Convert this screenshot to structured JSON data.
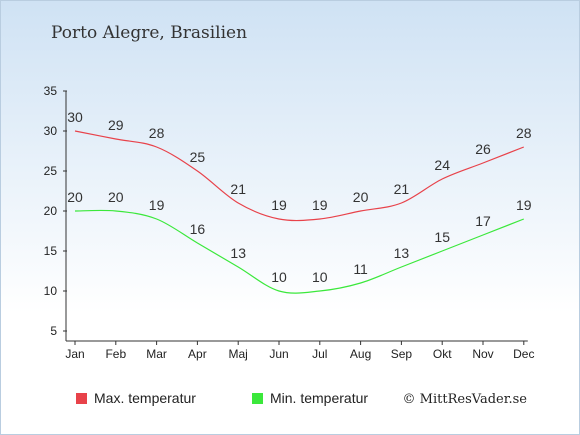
{
  "title": "Porto Alegre, Brasilien",
  "credit": "© MittResVader.se",
  "colors": {
    "max": "#e8424a",
    "min": "#3be83b",
    "axis": "#333333"
  },
  "chart_data": {
    "type": "line",
    "categories": [
      "Jan",
      "Feb",
      "Mar",
      "Apr",
      "Maj",
      "Jun",
      "Jul",
      "Aug",
      "Sep",
      "Okt",
      "Nov",
      "Dec"
    ],
    "yticks": [
      5,
      10,
      15,
      20,
      25,
      30,
      35
    ],
    "ylim": [
      5,
      35
    ],
    "grid": false,
    "legend_position": "bottom",
    "series": [
      {
        "name": "Max. temperatur",
        "color": "#e8424a",
        "values": [
          30,
          29,
          28,
          25,
          21,
          19,
          19,
          20,
          21,
          24,
          26,
          28
        ]
      },
      {
        "name": "Min. temperatur",
        "color": "#3be83b",
        "values": [
          20,
          20,
          19,
          16,
          13,
          10,
          10,
          11,
          13,
          15,
          17,
          19
        ]
      }
    ]
  }
}
